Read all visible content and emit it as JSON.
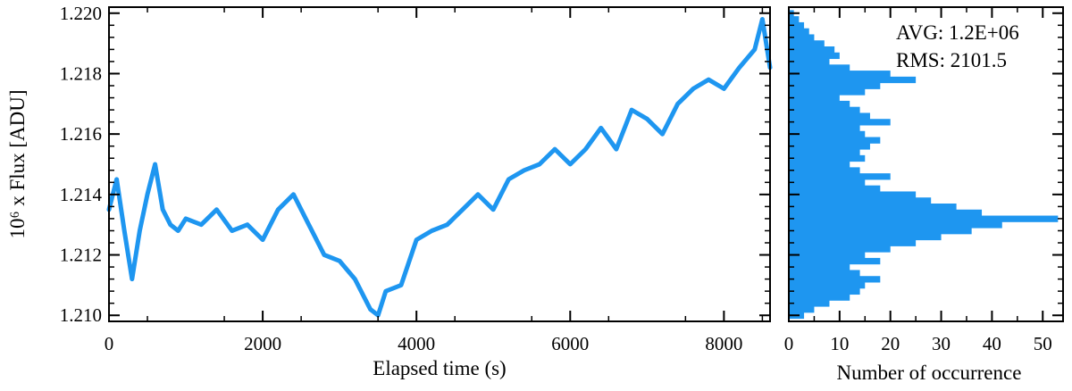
{
  "colors": {
    "series": "#1e96f0",
    "axis": "#000000"
  },
  "chart_data": [
    {
      "type": "line",
      "xlabel": "Elapsed time (s)",
      "ylabel": "10⁶ x Flux [ADU]",
      "xlim": [
        0,
        8600
      ],
      "ylim": [
        1.2098,
        1.2202
      ],
      "xticks": [
        0,
        2000,
        4000,
        6000,
        8000
      ],
      "xtick_labels": [
        "0",
        "2000",
        "4000",
        "6000",
        "8000"
      ],
      "yticks": [
        1.21,
        1.212,
        1.214,
        1.216,
        1.218,
        1.22
      ],
      "ytick_labels": [
        "1.210",
        "1.212",
        "1.214",
        "1.216",
        "1.218",
        "1.220"
      ],
      "grid": false,
      "series": [
        {
          "x": [
            0,
            100,
            200,
            300,
            400,
            500,
            600,
            700,
            800,
            900,
            1000,
            1200,
            1400,
            1600,
            1800,
            2000,
            2200,
            2400,
            2600,
            2800,
            3000,
            3200,
            3400,
            3500,
            3600,
            3800,
            4000,
            4200,
            4400,
            4600,
            4800,
            5000,
            5200,
            5400,
            5600,
            5800,
            6000,
            6200,
            6400,
            6600,
            6800,
            7000,
            7200,
            7400,
            7600,
            7800,
            8000,
            8200,
            8400,
            8500,
            8600
          ],
          "y": [
            1.2135,
            1.2145,
            1.2128,
            1.2112,
            1.2128,
            1.214,
            1.215,
            1.2135,
            1.213,
            1.2128,
            1.2132,
            1.213,
            1.2135,
            1.2128,
            1.213,
            1.2125,
            1.2135,
            1.214,
            1.213,
            1.212,
            1.2118,
            1.2112,
            1.2102,
            1.21,
            1.2108,
            1.211,
            1.2125,
            1.2128,
            1.213,
            1.2135,
            1.214,
            1.2135,
            1.2145,
            1.2148,
            1.215,
            1.2155,
            1.215,
            1.2155,
            1.2162,
            1.2155,
            1.2168,
            1.2165,
            1.216,
            1.217,
            1.2175,
            1.2178,
            1.2175,
            1.2182,
            1.2188,
            1.2198,
            1.2182
          ]
        }
      ]
    },
    {
      "type": "bar",
      "orientation": "horizontal",
      "xlabel": "Number of occurrence",
      "ylabel": "",
      "xlim": [
        0,
        54
      ],
      "ylim": [
        1.2098,
        1.2202
      ],
      "xticks": [
        0,
        10,
        20,
        30,
        40,
        50
      ],
      "xtick_labels": [
        "0",
        "10",
        "20",
        "30",
        "40",
        "50"
      ],
      "grid": false,
      "annotations": [
        "AVG: 1.2E+06",
        "RMS: 2101.5"
      ],
      "bins": [
        1.21,
        1.2102,
        1.2104,
        1.2106,
        1.2108,
        1.211,
        1.2112,
        1.2114,
        1.2116,
        1.2118,
        1.212,
        1.2122,
        1.2124,
        1.2126,
        1.2128,
        1.213,
        1.2132,
        1.2134,
        1.2136,
        1.2138,
        1.214,
        1.2142,
        1.2144,
        1.2146,
        1.2148,
        1.215,
        1.2152,
        1.2154,
        1.2156,
        1.2158,
        1.216,
        1.2162,
        1.2164,
        1.2166,
        1.2168,
        1.217,
        1.2172,
        1.2174,
        1.2176,
        1.2178,
        1.218,
        1.2182,
        1.2184,
        1.2186,
        1.2188,
        1.219,
        1.2192,
        1.2194,
        1.2196,
        1.2198,
        1.22
      ],
      "counts": [
        3,
        5,
        8,
        12,
        14,
        15,
        18,
        14,
        12,
        18,
        15,
        20,
        25,
        30,
        36,
        42,
        53,
        38,
        33,
        28,
        25,
        18,
        15,
        20,
        14,
        12,
        15,
        14,
        16,
        18,
        15,
        14,
        20,
        16,
        14,
        12,
        10,
        15,
        18,
        25,
        20,
        12,
        8,
        10,
        9,
        7,
        5,
        4,
        3,
        2,
        1
      ]
    }
  ]
}
